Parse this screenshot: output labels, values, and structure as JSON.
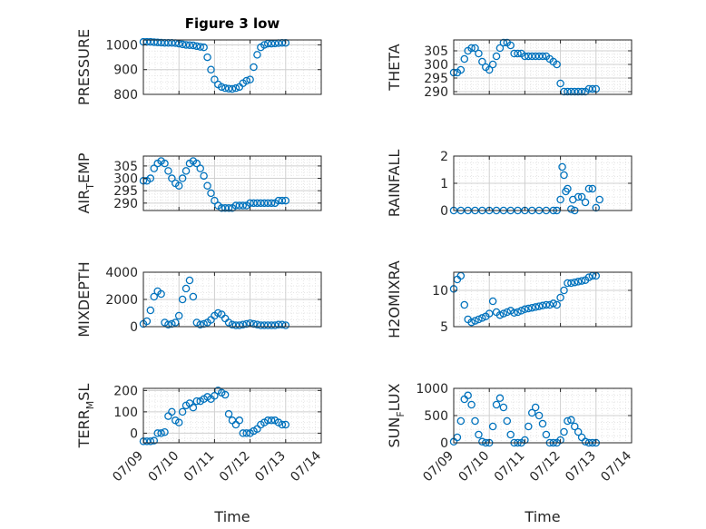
{
  "figure_title": "Figure 3 low",
  "colors": {
    "marker": "#0072BD",
    "axis": "#262626",
    "grid": "#d0d0d0",
    "minor_grid": "#e6e6e6"
  },
  "chart_data": [
    {
      "id": "pressure",
      "type": "scatter",
      "title": "Figure 3 low",
      "ylabel": "PRESSURE",
      "ylabel_main": "PRESSURE",
      "ylabel_sub": "",
      "ylabel_tail": "",
      "ylim": [
        800,
        1020
      ],
      "yticks": [
        800,
        900,
        1000
      ],
      "ytick_labels": [
        "800",
        "900",
        "1000"
      ],
      "xlim": [
        0,
        5
      ],
      "xtick_labels": [],
      "xlabel": "",
      "x": [
        0.0,
        0.1,
        0.2,
        0.3,
        0.4,
        0.5,
        0.6,
        0.7,
        0.8,
        0.9,
        1.0,
        1.1,
        1.2,
        1.3,
        1.4,
        1.5,
        1.6,
        1.7,
        1.8,
        1.9,
        2.0,
        2.1,
        2.2,
        2.3,
        2.4,
        2.5,
        2.6,
        2.7,
        2.8,
        2.9,
        3.0,
        3.1,
        3.2,
        3.3,
        3.4,
        3.5,
        3.6,
        3.7,
        3.8,
        3.9,
        4.0
      ],
      "y": [
        1012,
        1012,
        1012,
        1011,
        1010,
        1009,
        1008,
        1008,
        1008,
        1007,
        1005,
        1002,
        1000,
        999,
        998,
        995,
        992,
        990,
        950,
        900,
        860,
        840,
        830,
        825,
        823,
        822,
        825,
        830,
        845,
        855,
        860,
        910,
        960,
        990,
        1000,
        1005,
        1005,
        1006,
        1007,
        1008,
        1008
      ]
    },
    {
      "id": "theta",
      "type": "scatter",
      "ylabel": "THETA",
      "ylabel_main": "THETA",
      "ylabel_sub": "",
      "ylabel_tail": "",
      "ylim": [
        289,
        309
      ],
      "yticks": [
        290,
        295,
        300,
        305
      ],
      "ytick_labels": [
        "290",
        "295",
        "300",
        "305"
      ],
      "xlim": [
        0,
        5
      ],
      "xtick_labels": [],
      "xlabel": "",
      "x": [
        0.0,
        0.1,
        0.2,
        0.3,
        0.4,
        0.5,
        0.6,
        0.7,
        0.8,
        0.9,
        1.0,
        1.1,
        1.2,
        1.3,
        1.4,
        1.5,
        1.6,
        1.7,
        1.8,
        1.9,
        2.0,
        2.1,
        2.2,
        2.3,
        2.4,
        2.5,
        2.6,
        2.7,
        2.8,
        2.9,
        3.0,
        3.1,
        3.2,
        3.3,
        3.4,
        3.5,
        3.6,
        3.7,
        3.8,
        3.9,
        4.0
      ],
      "y": [
        297,
        297,
        298,
        302,
        305,
        306,
        306,
        304,
        301,
        299,
        298,
        300,
        303,
        306,
        308,
        308,
        307,
        304,
        304,
        304,
        303,
        303,
        303,
        303,
        303,
        303,
        303,
        302,
        301,
        300,
        293,
        290,
        290,
        290,
        290,
        290,
        290,
        290,
        291,
        291,
        291
      ]
    },
    {
      "id": "air_temp",
      "type": "scatter",
      "ylabel": "AIR_TEMP",
      "ylabel_main": "AIR",
      "ylabel_sub": "T",
      "ylabel_tail": "EMP",
      "ylim": [
        287,
        309
      ],
      "yticks": [
        290,
        295,
        300,
        305
      ],
      "ytick_labels": [
        "290",
        "295",
        "300",
        "305"
      ],
      "xlim": [
        0,
        5
      ],
      "xtick_labels": [],
      "xlabel": "",
      "x": [
        0.0,
        0.1,
        0.2,
        0.3,
        0.4,
        0.5,
        0.6,
        0.7,
        0.8,
        0.9,
        1.0,
        1.1,
        1.2,
        1.3,
        1.4,
        1.5,
        1.6,
        1.7,
        1.8,
        1.9,
        2.0,
        2.1,
        2.2,
        2.3,
        2.4,
        2.5,
        2.6,
        2.7,
        2.8,
        2.9,
        3.0,
        3.1,
        3.2,
        3.3,
        3.4,
        3.5,
        3.6,
        3.7,
        3.8,
        3.9,
        4.0
      ],
      "y": [
        299,
        299,
        300,
        304,
        306,
        307,
        306,
        303,
        300,
        298,
        297,
        300,
        303,
        306,
        307,
        306,
        304,
        301,
        297,
        294,
        291,
        289,
        288,
        288,
        288,
        288,
        289,
        289,
        289,
        289,
        290,
        290,
        290,
        290,
        290,
        290,
        290,
        290,
        291,
        291,
        291
      ]
    },
    {
      "id": "rainfall",
      "type": "scatter",
      "ylabel": "RAINFALL",
      "ylabel_main": "RAINFALL",
      "ylabel_sub": "",
      "ylabel_tail": "",
      "ylim": [
        0,
        2
      ],
      "yticks": [
        0,
        1,
        2
      ],
      "ytick_labels": [
        "0",
        "1",
        "2"
      ],
      "xlim": [
        0,
        5
      ],
      "xtick_labels": [],
      "xlabel": "",
      "x": [
        0.0,
        0.2,
        0.4,
        0.6,
        0.8,
        1.0,
        1.2,
        1.4,
        1.6,
        1.8,
        2.0,
        2.2,
        2.4,
        2.6,
        2.8,
        2.9,
        3.0,
        3.05,
        3.1,
        3.15,
        3.2,
        3.3,
        3.35,
        3.4,
        3.5,
        3.6,
        3.7,
        3.8,
        3.9,
        4.0,
        4.1
      ],
      "y": [
        0,
        0,
        0,
        0,
        0,
        0,
        0,
        0,
        0,
        0,
        0,
        0,
        0,
        0,
        0,
        0,
        0.4,
        1.6,
        1.3,
        0.7,
        0.8,
        0.05,
        0.4,
        0,
        0.5,
        0.5,
        0.3,
        0.8,
        0.8,
        0.1,
        0.4
      ]
    },
    {
      "id": "mixdepth",
      "type": "scatter",
      "ylabel": "MIXDEPTH",
      "ylabel_main": "MIXDEPTH",
      "ylabel_sub": "",
      "ylabel_tail": "",
      "ylim": [
        0,
        4000
      ],
      "yticks": [
        0,
        2000,
        4000
      ],
      "ytick_labels": [
        "0",
        "2000",
        "4000"
      ],
      "xlim": [
        0,
        5
      ],
      "xtick_labels": [],
      "xlabel": "",
      "x": [
        0.0,
        0.1,
        0.2,
        0.3,
        0.4,
        0.5,
        0.6,
        0.7,
        0.8,
        0.9,
        1.0,
        1.1,
        1.2,
        1.3,
        1.4,
        1.5,
        1.6,
        1.7,
        1.8,
        1.9,
        2.0,
        2.1,
        2.2,
        2.3,
        2.4,
        2.5,
        2.6,
        2.7,
        2.8,
        2.9,
        3.0,
        3.1,
        3.2,
        3.3,
        3.4,
        3.5,
        3.6,
        3.7,
        3.8,
        3.9,
        4.0
      ],
      "y": [
        200,
        400,
        1200,
        2200,
        2600,
        2400,
        300,
        150,
        200,
        300,
        800,
        2000,
        2800,
        3400,
        2200,
        300,
        150,
        200,
        300,
        500,
        800,
        1000,
        900,
        600,
        300,
        150,
        100,
        100,
        150,
        200,
        250,
        200,
        150,
        100,
        100,
        100,
        100,
        100,
        150,
        150,
        100
      ]
    },
    {
      "id": "h2omixra",
      "type": "scatter",
      "ylabel": "H2OMIXRA",
      "ylabel_main": "H2OMIXRA",
      "ylabel_sub": "",
      "ylabel_tail": "",
      "ylim": [
        5,
        12.5
      ],
      "yticks": [
        5,
        10
      ],
      "ytick_labels": [
        "5",
        "10"
      ],
      "xlim": [
        0,
        5
      ],
      "xtick_labels": [],
      "xlabel": "",
      "x": [
        0.0,
        0.1,
        0.2,
        0.3,
        0.4,
        0.5,
        0.6,
        0.7,
        0.8,
        0.9,
        1.0,
        1.1,
        1.2,
        1.3,
        1.4,
        1.5,
        1.6,
        1.7,
        1.8,
        1.9,
        2.0,
        2.1,
        2.2,
        2.3,
        2.4,
        2.5,
        2.6,
        2.7,
        2.8,
        2.9,
        3.0,
        3.1,
        3.2,
        3.3,
        3.4,
        3.5,
        3.6,
        3.7,
        3.8,
        3.9,
        4.0
      ],
      "y": [
        10.2,
        11.5,
        12.0,
        8.0,
        6.0,
        5.6,
        5.8,
        6.0,
        6.2,
        6.4,
        6.8,
        8.5,
        7.0,
        6.6,
        6.8,
        7.0,
        7.2,
        6.9,
        7.0,
        7.2,
        7.4,
        7.5,
        7.6,
        7.7,
        7.8,
        7.9,
        8.0,
        8.0,
        8.2,
        8.0,
        9.0,
        10.0,
        11.0,
        11.0,
        11.1,
        11.2,
        11.3,
        11.4,
        11.8,
        12.0,
        12.0
      ]
    },
    {
      "id": "terr_msl",
      "type": "scatter",
      "ylabel": "TERR_MSL",
      "ylabel_main": "TERR",
      "ylabel_sub": "M",
      "ylabel_tail": "SL",
      "ylim": [
        -45,
        210
      ],
      "yticks": [
        0,
        100,
        200
      ],
      "ytick_labels": [
        "0",
        "100",
        "200"
      ],
      "xlim": [
        0,
        5
      ],
      "xtick_labels": [
        "07/09",
        "07/10",
        "07/11",
        "07/12",
        "07/13",
        "07/14"
      ],
      "xlabel": "Time",
      "x": [
        0.0,
        0.1,
        0.2,
        0.3,
        0.4,
        0.5,
        0.6,
        0.7,
        0.8,
        0.9,
        1.0,
        1.1,
        1.2,
        1.3,
        1.4,
        1.5,
        1.6,
        1.7,
        1.8,
        1.9,
        2.0,
        2.1,
        2.2,
        2.3,
        2.4,
        2.5,
        2.6,
        2.7,
        2.8,
        2.9,
        3.0,
        3.1,
        3.2,
        3.3,
        3.4,
        3.5,
        3.6,
        3.7,
        3.8,
        3.9,
        4.0
      ],
      "y": [
        -38,
        -38,
        -38,
        -35,
        0,
        0,
        5,
        80,
        100,
        60,
        50,
        100,
        130,
        140,
        120,
        150,
        150,
        160,
        170,
        160,
        175,
        200,
        190,
        180,
        90,
        60,
        40,
        60,
        0,
        0,
        0,
        10,
        20,
        40,
        50,
        60,
        60,
        60,
        50,
        40,
        40
      ]
    },
    {
      "id": "sun_flux",
      "type": "scatter",
      "ylabel": "SUN_FLUX",
      "ylabel_main": "SUN",
      "ylabel_sub": "F",
      "ylabel_tail": "LUX",
      "ylim": [
        0,
        1000
      ],
      "yticks": [
        0,
        500,
        1000
      ],
      "ytick_labels": [
        "0",
        "500",
        "1000"
      ],
      "xlim": [
        0,
        5
      ],
      "xtick_labels": [
        "07/09",
        "07/10",
        "07/11",
        "07/12",
        "07/13",
        "07/14"
      ],
      "xlabel": "Time",
      "x": [
        0.0,
        0.1,
        0.2,
        0.3,
        0.4,
        0.5,
        0.6,
        0.7,
        0.8,
        0.9,
        1.0,
        1.1,
        1.2,
        1.3,
        1.4,
        1.5,
        1.6,
        1.7,
        1.8,
        1.9,
        2.0,
        2.1,
        2.2,
        2.3,
        2.4,
        2.5,
        2.6,
        2.7,
        2.8,
        2.9,
        3.0,
        3.1,
        3.2,
        3.3,
        3.4,
        3.5,
        3.6,
        3.7,
        3.8,
        3.9,
        4.0
      ],
      "y": [
        20,
        100,
        400,
        800,
        870,
        700,
        400,
        150,
        20,
        0,
        0,
        300,
        700,
        820,
        650,
        400,
        150,
        0,
        0,
        0,
        50,
        300,
        550,
        650,
        500,
        350,
        150,
        0,
        0,
        0,
        50,
        200,
        400,
        420,
        300,
        200,
        100,
        20,
        0,
        0,
        0
      ]
    }
  ]
}
